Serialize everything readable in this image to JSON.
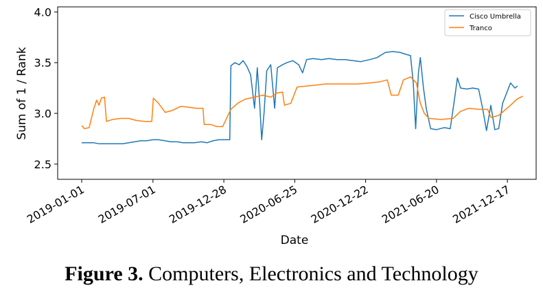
{
  "caption": {
    "label": "Figure 3.",
    "text": "Computers, Electronics and Technology"
  },
  "chart_data": {
    "type": "line",
    "xlabel": "Date",
    "ylabel": "Sum of 1 / Rank",
    "ylim": [
      2.35,
      4.05
    ],
    "xlim": [
      "2018-11-01",
      "2022-02-28"
    ],
    "yticks": [
      2.5,
      3.0,
      3.5,
      4.0
    ],
    "ytick_labels": [
      "2.5",
      "3.0",
      "3.5",
      "4.0"
    ],
    "xticks": [
      "2019-01-01",
      "2019-07-01",
      "2019-12-28",
      "2020-06-25",
      "2020-12-22",
      "2021-06-20",
      "2021-12-17"
    ],
    "legend_position": "top-right",
    "grid": false,
    "series": [
      {
        "name": "Cisco Umbrella",
        "color": "#1f77b4",
        "points": [
          [
            "2019-01-01",
            2.71
          ],
          [
            "2019-01-15",
            2.71
          ],
          [
            "2019-02-01",
            2.71
          ],
          [
            "2019-02-15",
            2.7
          ],
          [
            "2019-03-01",
            2.7
          ],
          [
            "2019-03-15",
            2.7
          ],
          [
            "2019-04-01",
            2.7
          ],
          [
            "2019-04-15",
            2.7
          ],
          [
            "2019-05-01",
            2.71
          ],
          [
            "2019-05-15",
            2.72
          ],
          [
            "2019-06-01",
            2.73
          ],
          [
            "2019-06-15",
            2.73
          ],
          [
            "2019-07-01",
            2.74
          ],
          [
            "2019-07-15",
            2.74
          ],
          [
            "2019-08-01",
            2.73
          ],
          [
            "2019-08-15",
            2.72
          ],
          [
            "2019-09-01",
            2.72
          ],
          [
            "2019-09-15",
            2.71
          ],
          [
            "2019-10-01",
            2.71
          ],
          [
            "2019-10-15",
            2.71
          ],
          [
            "2019-11-01",
            2.72
          ],
          [
            "2019-11-15",
            2.71
          ],
          [
            "2019-12-01",
            2.73
          ],
          [
            "2019-12-15",
            2.74
          ],
          [
            "2020-01-01",
            2.74
          ],
          [
            "2020-01-12",
            2.74
          ],
          [
            "2020-01-15",
            3.47
          ],
          [
            "2020-01-25",
            3.5
          ],
          [
            "2020-02-05",
            3.48
          ],
          [
            "2020-02-15",
            3.52
          ],
          [
            "2020-02-25",
            3.46
          ],
          [
            "2020-03-05",
            3.38
          ],
          [
            "2020-03-15",
            3.05
          ],
          [
            "2020-03-22",
            3.45
          ],
          [
            "2020-03-28",
            3.1
          ],
          [
            "2020-04-02",
            2.74
          ],
          [
            "2020-04-08",
            3.0
          ],
          [
            "2020-04-15",
            3.42
          ],
          [
            "2020-04-25",
            3.48
          ],
          [
            "2020-05-05",
            3.05
          ],
          [
            "2020-05-12",
            3.45
          ],
          [
            "2020-05-25",
            3.48
          ],
          [
            "2020-06-05",
            3.5
          ],
          [
            "2020-06-20",
            3.52
          ],
          [
            "2020-07-05",
            3.48
          ],
          [
            "2020-07-15",
            3.4
          ],
          [
            "2020-07-25",
            3.53
          ],
          [
            "2020-08-10",
            3.54
          ],
          [
            "2020-09-01",
            3.53
          ],
          [
            "2020-09-20",
            3.54
          ],
          [
            "2020-10-10",
            3.53
          ],
          [
            "2020-11-01",
            3.53
          ],
          [
            "2020-11-20",
            3.52
          ],
          [
            "2020-12-10",
            3.51
          ],
          [
            "2021-01-01",
            3.53
          ],
          [
            "2021-01-20",
            3.55
          ],
          [
            "2021-02-10",
            3.6
          ],
          [
            "2021-03-01",
            3.61
          ],
          [
            "2021-03-20",
            3.6
          ],
          [
            "2021-04-05",
            3.58
          ],
          [
            "2021-04-15",
            3.57
          ],
          [
            "2021-04-22",
            3.3
          ],
          [
            "2021-04-28",
            2.85
          ],
          [
            "2021-05-05",
            3.4
          ],
          [
            "2021-05-10",
            3.55
          ],
          [
            "2021-05-18",
            3.25
          ],
          [
            "2021-05-25",
            3.05
          ],
          [
            "2021-06-05",
            2.85
          ],
          [
            "2021-06-20",
            2.84
          ],
          [
            "2021-07-10",
            2.86
          ],
          [
            "2021-07-25",
            2.85
          ],
          [
            "2021-08-05",
            3.15
          ],
          [
            "2021-08-12",
            3.35
          ],
          [
            "2021-08-20",
            3.25
          ],
          [
            "2021-09-05",
            3.24
          ],
          [
            "2021-09-20",
            3.25
          ],
          [
            "2021-10-05",
            3.24
          ],
          [
            "2021-10-15",
            3.05
          ],
          [
            "2021-10-25",
            2.83
          ],
          [
            "2021-11-05",
            3.08
          ],
          [
            "2021-11-15",
            2.84
          ],
          [
            "2021-11-25",
            2.85
          ],
          [
            "2021-12-05",
            3.1
          ],
          [
            "2021-12-15",
            3.2
          ],
          [
            "2021-12-25",
            3.3
          ],
          [
            "2022-01-05",
            3.25
          ],
          [
            "2022-01-12",
            3.27
          ]
        ]
      },
      {
        "name": "Tranco",
        "color": "#ff7f0e",
        "points": [
          [
            "2019-01-01",
            2.88
          ],
          [
            "2019-01-08",
            2.85
          ],
          [
            "2019-01-20",
            2.86
          ],
          [
            "2019-02-01",
            3.05
          ],
          [
            "2019-02-08",
            3.13
          ],
          [
            "2019-02-14",
            3.08
          ],
          [
            "2019-02-20",
            3.15
          ],
          [
            "2019-02-28",
            3.16
          ],
          [
            "2019-03-05",
            2.92
          ],
          [
            "2019-03-20",
            2.94
          ],
          [
            "2019-04-10",
            2.95
          ],
          [
            "2019-05-01",
            2.95
          ],
          [
            "2019-05-20",
            2.93
          ],
          [
            "2019-06-10",
            2.92
          ],
          [
            "2019-06-28",
            2.92
          ],
          [
            "2019-07-02",
            3.15
          ],
          [
            "2019-07-15",
            3.1
          ],
          [
            "2019-08-01",
            3.01
          ],
          [
            "2019-08-20",
            3.03
          ],
          [
            "2019-09-10",
            3.07
          ],
          [
            "2019-10-01",
            3.06
          ],
          [
            "2019-10-20",
            3.05
          ],
          [
            "2019-11-05",
            3.05
          ],
          [
            "2019-11-08",
            2.89
          ],
          [
            "2019-11-25",
            2.89
          ],
          [
            "2019-12-10",
            2.87
          ],
          [
            "2019-12-25",
            2.87
          ],
          [
            "2020-01-15",
            3.04
          ],
          [
            "2020-02-01",
            3.1
          ],
          [
            "2020-02-20",
            3.14
          ],
          [
            "2020-03-15",
            3.16
          ],
          [
            "2020-04-05",
            3.18
          ],
          [
            "2020-04-25",
            3.16
          ],
          [
            "2020-05-10",
            3.2
          ],
          [
            "2020-05-25",
            3.21
          ],
          [
            "2020-05-30",
            3.08
          ],
          [
            "2020-06-15",
            3.1
          ],
          [
            "2020-07-01",
            3.26
          ],
          [
            "2020-07-25",
            3.27
          ],
          [
            "2020-08-20",
            3.28
          ],
          [
            "2020-09-10",
            3.29
          ],
          [
            "2020-10-05",
            3.29
          ],
          [
            "2020-11-01",
            3.29
          ],
          [
            "2020-12-01",
            3.29
          ],
          [
            "2021-01-01",
            3.3
          ],
          [
            "2021-01-25",
            3.31
          ],
          [
            "2021-02-15",
            3.33
          ],
          [
            "2021-02-25",
            3.18
          ],
          [
            "2021-03-15",
            3.18
          ],
          [
            "2021-03-28",
            3.33
          ],
          [
            "2021-04-15",
            3.36
          ],
          [
            "2021-04-30",
            3.3
          ],
          [
            "2021-05-10",
            3.1
          ],
          [
            "2021-05-20",
            3.0
          ],
          [
            "2021-06-01",
            2.95
          ],
          [
            "2021-07-01",
            2.94
          ],
          [
            "2021-08-01",
            2.95
          ],
          [
            "2021-08-20",
            3.02
          ],
          [
            "2021-09-10",
            3.05
          ],
          [
            "2021-10-05",
            3.04
          ],
          [
            "2021-10-28",
            3.04
          ],
          [
            "2021-11-05",
            2.96
          ],
          [
            "2021-11-25",
            2.98
          ],
          [
            "2021-12-10",
            3.03
          ],
          [
            "2021-12-25",
            3.08
          ],
          [
            "2022-01-10",
            3.14
          ],
          [
            "2022-01-25",
            3.17
          ]
        ]
      }
    ]
  }
}
